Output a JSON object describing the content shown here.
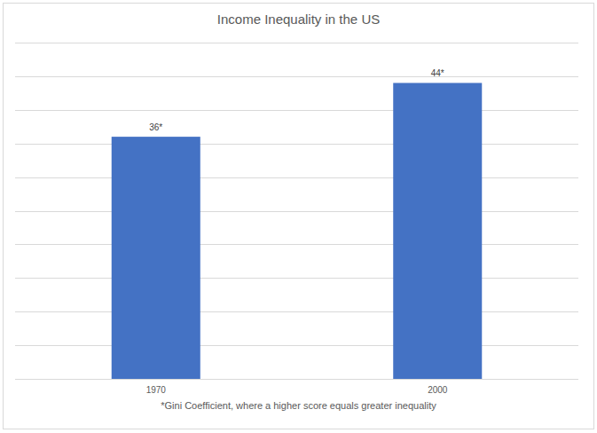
{
  "chart_data": {
    "type": "bar",
    "title": "Income Inequality in the US",
    "categories": [
      "1970",
      "2000"
    ],
    "values": [
      36,
      44
    ],
    "value_labels": [
      "36*",
      "44*"
    ],
    "data_labels": true,
    "color": "#4472c4",
    "xlabel": "*Gini Coefficient, where a higher score equals greater inequality",
    "ylim": [
      0,
      50
    ],
    "yticks": [
      0,
      5,
      10,
      15,
      20,
      25,
      30,
      35,
      40,
      45,
      50
    ],
    "grid": true,
    "tick_labels": "x"
  }
}
